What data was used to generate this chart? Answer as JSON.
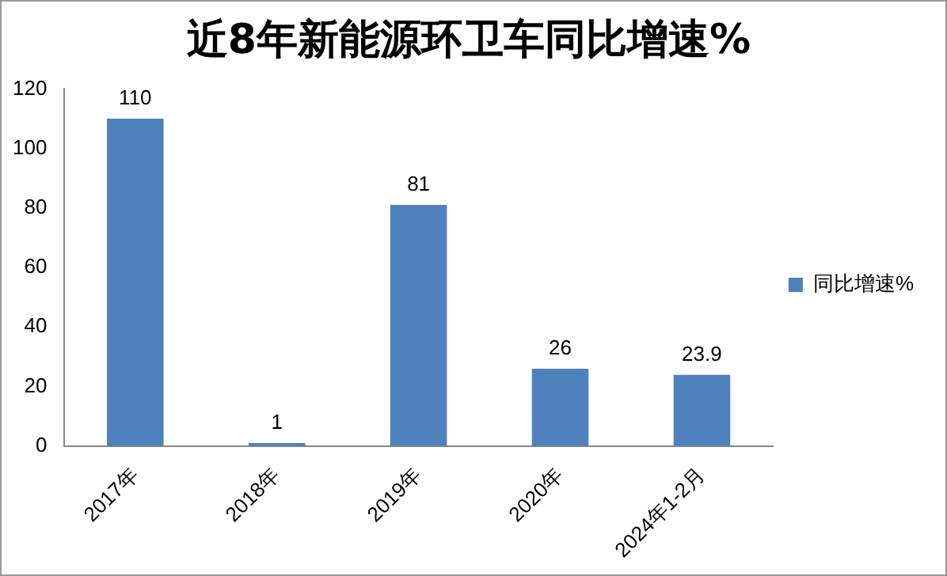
{
  "chart_data": {
    "type": "bar",
    "title": "近8年新能源环卫车同比增速%",
    "categories": [
      "2017年",
      "2018年",
      "2019年",
      "2020年",
      "2024年1-2月"
    ],
    "series": [
      {
        "name": "同比增速%",
        "color": "#4f81bd",
        "values": [
          110,
          1,
          81,
          26,
          23.9
        ]
      }
    ],
    "ylim": [
      0,
      120
    ],
    "yticks": [
      0,
      20,
      40,
      60,
      80,
      100,
      120
    ],
    "grid": false,
    "legend": "right",
    "data_labels": true
  }
}
